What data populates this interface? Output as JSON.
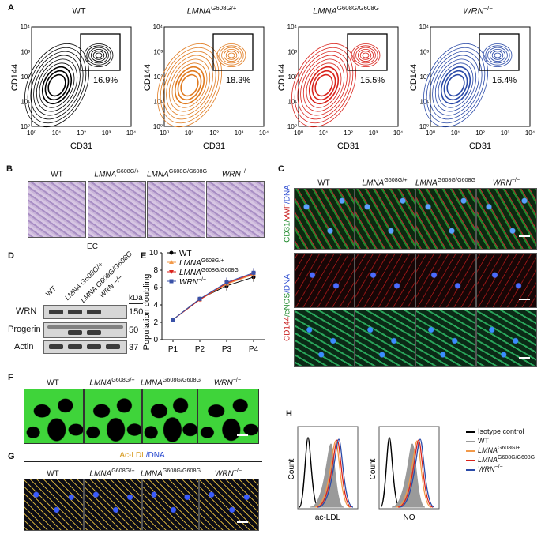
{
  "panel_letters": {
    "a": "A",
    "b": "B",
    "c": "C",
    "d": "D",
    "e": "E",
    "f": "F",
    "g": "G",
    "h": "H"
  },
  "genotypes": [
    {
      "base": "WT",
      "sup": ""
    },
    {
      "base": "LMNA",
      "sup": "G608G/+"
    },
    {
      "base": "LMNA",
      "sup": "G608G/G608G"
    },
    {
      "base": "WRN",
      "sup": "−/−"
    }
  ],
  "panel_a": {
    "ylabel": "CD144",
    "xlabel": "CD31",
    "ticks": [
      "10⁰",
      "10¹",
      "10²",
      "10³",
      "10⁴"
    ],
    "percents": [
      "16.9%",
      "18.3%",
      "15.5%",
      "16.4%"
    ],
    "colors": [
      "#000000",
      "#e07a1e",
      "#d9231c",
      "#2a4aa8"
    ]
  },
  "panel_c": {
    "top_label_a": "CD31/",
    "top_label_b": "vWF",
    "top_label_c": "/DNA",
    "bottom_label_a": "CD144",
    "bottom_label_b": "/eNOS",
    "bottom_label_c": "/DNA"
  },
  "panel_d": {
    "group_label": "EC",
    "lanes": [
      "WT",
      "LMNA G608G/+",
      "LMNA G608G/G608G",
      "WRN −/−"
    ],
    "rows": [
      "WRN",
      "Progerin",
      "Actin"
    ],
    "kda_header": "kDa",
    "kda": [
      "150",
      "50",
      "37"
    ]
  },
  "panel_e": {
    "ylabel": "Population doubling",
    "yticks": [
      "0",
      "2",
      "4",
      "6",
      "8",
      "10"
    ],
    "xticks": [
      "P1",
      "P2",
      "P3",
      "P4"
    ],
    "legend": [
      {
        "base": "WT",
        "sup": ""
      },
      {
        "base": "LMNA",
        "sup": "G608G/+"
      },
      {
        "base": "LMNA",
        "sup": "G608G/G608G"
      },
      {
        "base": "WRN",
        "sup": "−/−"
      }
    ]
  },
  "panel_g": {
    "title_a": "Ac-LDL",
    "title_b": "/DNA"
  },
  "panel_h": {
    "ylabel": "Count",
    "xlabels": [
      "ac-LDL",
      "NO"
    ],
    "legend": [
      {
        "base": "Isotype control",
        "sup": ""
      },
      {
        "base": "WT",
        "sup": ""
      },
      {
        "base": "LMNA",
        "sup": "G608G/+"
      },
      {
        "base": "LMNA",
        "sup": "G608G/G608G"
      },
      {
        "base": "WRN",
        "sup": "−/−"
      }
    ],
    "colors": [
      "#000000",
      "#9a9a9a",
      "#f29a4a",
      "#d9231c",
      "#2a4aa8"
    ]
  },
  "chart_data": [
    {
      "type": "line",
      "ylabel": "Population doubling",
      "categories": [
        "P1",
        "P2",
        "P3",
        "P4"
      ],
      "ylim": [
        0,
        10
      ],
      "series": [
        {
          "name": "WT",
          "values": [
            2.3,
            4.7,
            6.2,
            7.2
          ],
          "color": "#000000"
        },
        {
          "name": "LMNA G608G/+",
          "values": [
            2.3,
            4.6,
            6.4,
            7.5
          ],
          "color": "#f29a4a"
        },
        {
          "name": "LMNA G608G/G608G",
          "values": [
            2.3,
            4.6,
            6.5,
            7.6
          ],
          "color": "#d9231c"
        },
        {
          "name": "WRN −/−",
          "values": [
            2.3,
            4.7,
            6.6,
            7.7
          ],
          "color": "#3a52a8"
        }
      ]
    }
  ]
}
